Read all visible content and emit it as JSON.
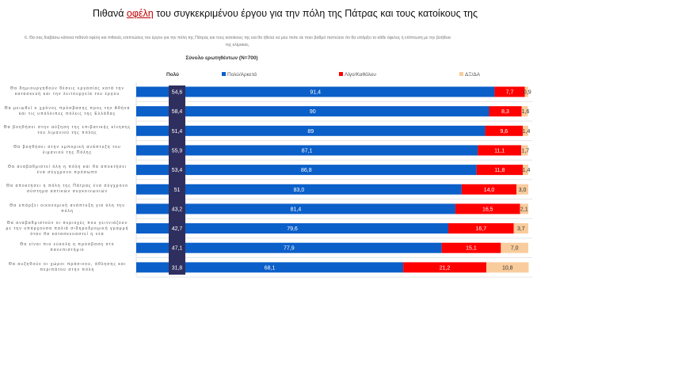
{
  "title": {
    "pre": "Πιθανά ",
    "highlight": "οφέλη",
    "post": " του συγκεκριμένου έργου για την πόλη της Πάτρας και τους κατοίκους της"
  },
  "question": "6. Θα σας διαβάσω κάποια πιθανά οφέλη και πιθανές επιπτώσεις του έργου για την πόλη της Πάτρας και τους κατοίκους της και θα ήθελα να μου πείτε σε ποιο βαθμό πιστεύετε ότι θα υπάρξει το κάθε όφελος ή επίπτωση με την βοήθεια της κλίμακας.",
  "base": "Σύνολο ερωτηθέντων (N=700)",
  "colors": {
    "blue": "#0b5fc9",
    "red": "#ff0000",
    "tan": "#f9cc9d",
    "dark": "#2f2f5f"
  },
  "chart_data": {
    "type": "bar",
    "orientation": "horizontal-stacked",
    "title": "Πιθανά οφέλη του συγκεκριμένου έργου για την πόλη της Πάτρας και τους κατοίκους της",
    "xlim": [
      0,
      100
    ],
    "extra_column": {
      "name": "Πολύ",
      "values": [
        "54,6",
        "58,4",
        "51,4",
        "55,9",
        "53,4",
        "51",
        "43,2",
        "42,7",
        "47,1",
        "31,8"
      ]
    },
    "categories": [
      "Θα δημιουργηθούν θέσεις εργασίας κατά την κατασκευή και την λειτουργεία του έργου",
      "Θα μειωθεί ο χρόνος πρόσβασης προς την Αθήνα και τις υπόλοιπες πόλεις της Ελλάδας",
      "Θα βοηθήσει στην αύξηση της επιβατικής κίνησης του λιμανιού της πόλης",
      "Θα βοηθήσει στην εμπορική ανάπτυξη του λιμανιού της Πόλης",
      "Θα αναβαθμιστεί όλη η πόλη και θα αποκτήσει ένα σύγχρονο πρόσωπο",
      "Θα αποκτήσει η πόλη της Πάτρας ένα σύγχρονο σύστημα αστικών συγκοινωνιών",
      "Θα υπάρξει οικονομική ανάπτυξη για όλη την πόλη",
      "Θα αναβαθμιστούν οι περιοχές που γειτνιάζουν με την υπάρχουσα παλιά σιδηροδρομική γραμμή όταν θα κατασκευαστεί η νέα",
      "Θα είναι πιο εύκολη η πρόσβαση στο πανεπιστήμιο",
      "Θα αυξηθούν οι χώροι πράσινου, άθλησης και περιπάτου στην πόλη"
    ],
    "series": [
      {
        "name": "Πολύ/Αρκετά",
        "values": [
          91.4,
          90,
          89,
          87.1,
          86.8,
          83.0,
          81.4,
          79.6,
          77.9,
          68.1
        ],
        "labels": [
          "91,4",
          "90",
          "89",
          "87,1",
          "86,8",
          "83,0",
          "81,4",
          "79,6",
          "77,9",
          "68,1"
        ]
      },
      {
        "name": "Λίγο/Καθόλου",
        "values": [
          7.7,
          8.3,
          9.6,
          11.1,
          11.8,
          14.0,
          16.5,
          16.7,
          15.1,
          21.2
        ],
        "labels": [
          "7,7",
          "8,3",
          "9,6",
          "11,1",
          "11,8",
          "14,0",
          "16,5",
          "16,7",
          "15,1",
          "21,2"
        ]
      },
      {
        "name": "ΔΞ/ΔΑ",
        "values": [
          0.9,
          1.6,
          1.4,
          1.7,
          1.4,
          3.0,
          2.1,
          3.7,
          7.0,
          10.8
        ],
        "labels": [
          "0,9",
          "1,6",
          "1,4",
          "1,7",
          "1,4",
          "3,0",
          "2,1",
          "3,7",
          "7,0",
          "10,8"
        ]
      }
    ],
    "legend": "top"
  }
}
